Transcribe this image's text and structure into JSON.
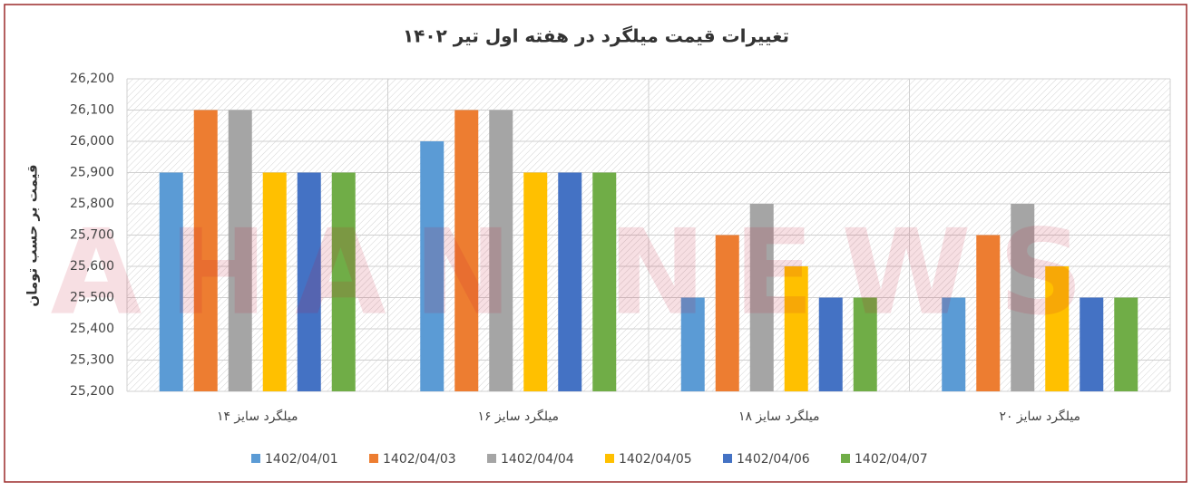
{
  "chart_data": {
    "type": "bar",
    "title": "تغییرات قیمت میلگرد در هفته اول تیر ۱۴۰۲",
    "y_label": "قیمت بر حسب تومان",
    "watermark": "AHAN NEWS",
    "categories": [
      "میلگرد سایز ۱۴",
      "میلگرد سایز ۱۶",
      "میلگرد سایز ۱۸",
      "میلگرد سایز ۲۰"
    ],
    "series": [
      {
        "name": "1402/04/01",
        "color": "#5b9bd5",
        "values": [
          25900,
          26000,
          25500,
          25500
        ]
      },
      {
        "name": "1402/04/03",
        "color": "#ed7d31",
        "values": [
          26100,
          26100,
          25700,
          25700
        ]
      },
      {
        "name": "1402/04/04",
        "color": "#a5a5a5",
        "values": [
          26100,
          26100,
          25800,
          25800
        ]
      },
      {
        "name": "1402/04/05",
        "color": "#ffc000",
        "values": [
          25900,
          25900,
          25600,
          25600
        ]
      },
      {
        "name": "1402/04/06",
        "color": "#4472c4",
        "values": [
          25900,
          25900,
          25500,
          25500
        ]
      },
      {
        "name": "1402/04/07",
        "color": "#70ad47",
        "values": [
          25900,
          25900,
          25500,
          25500
        ]
      }
    ],
    "ylim": [
      25200,
      26200
    ],
    "yticks": [
      {
        "value": 25200,
        "label": "25,200"
      },
      {
        "value": 25300,
        "label": "25,300"
      },
      {
        "value": 25400,
        "label": "25,400"
      },
      {
        "value": 25500,
        "label": "25,500"
      },
      {
        "value": 25600,
        "label": "25,600"
      },
      {
        "value": 25700,
        "label": "25,700"
      },
      {
        "value": 25800,
        "label": "25,800"
      },
      {
        "value": 25900,
        "label": "25,900"
      },
      {
        "value": 26000,
        "label": "26,000"
      },
      {
        "value": 26100,
        "label": "26,100"
      },
      {
        "value": 26200,
        "label": "26,200"
      }
    ],
    "grid": true
  }
}
